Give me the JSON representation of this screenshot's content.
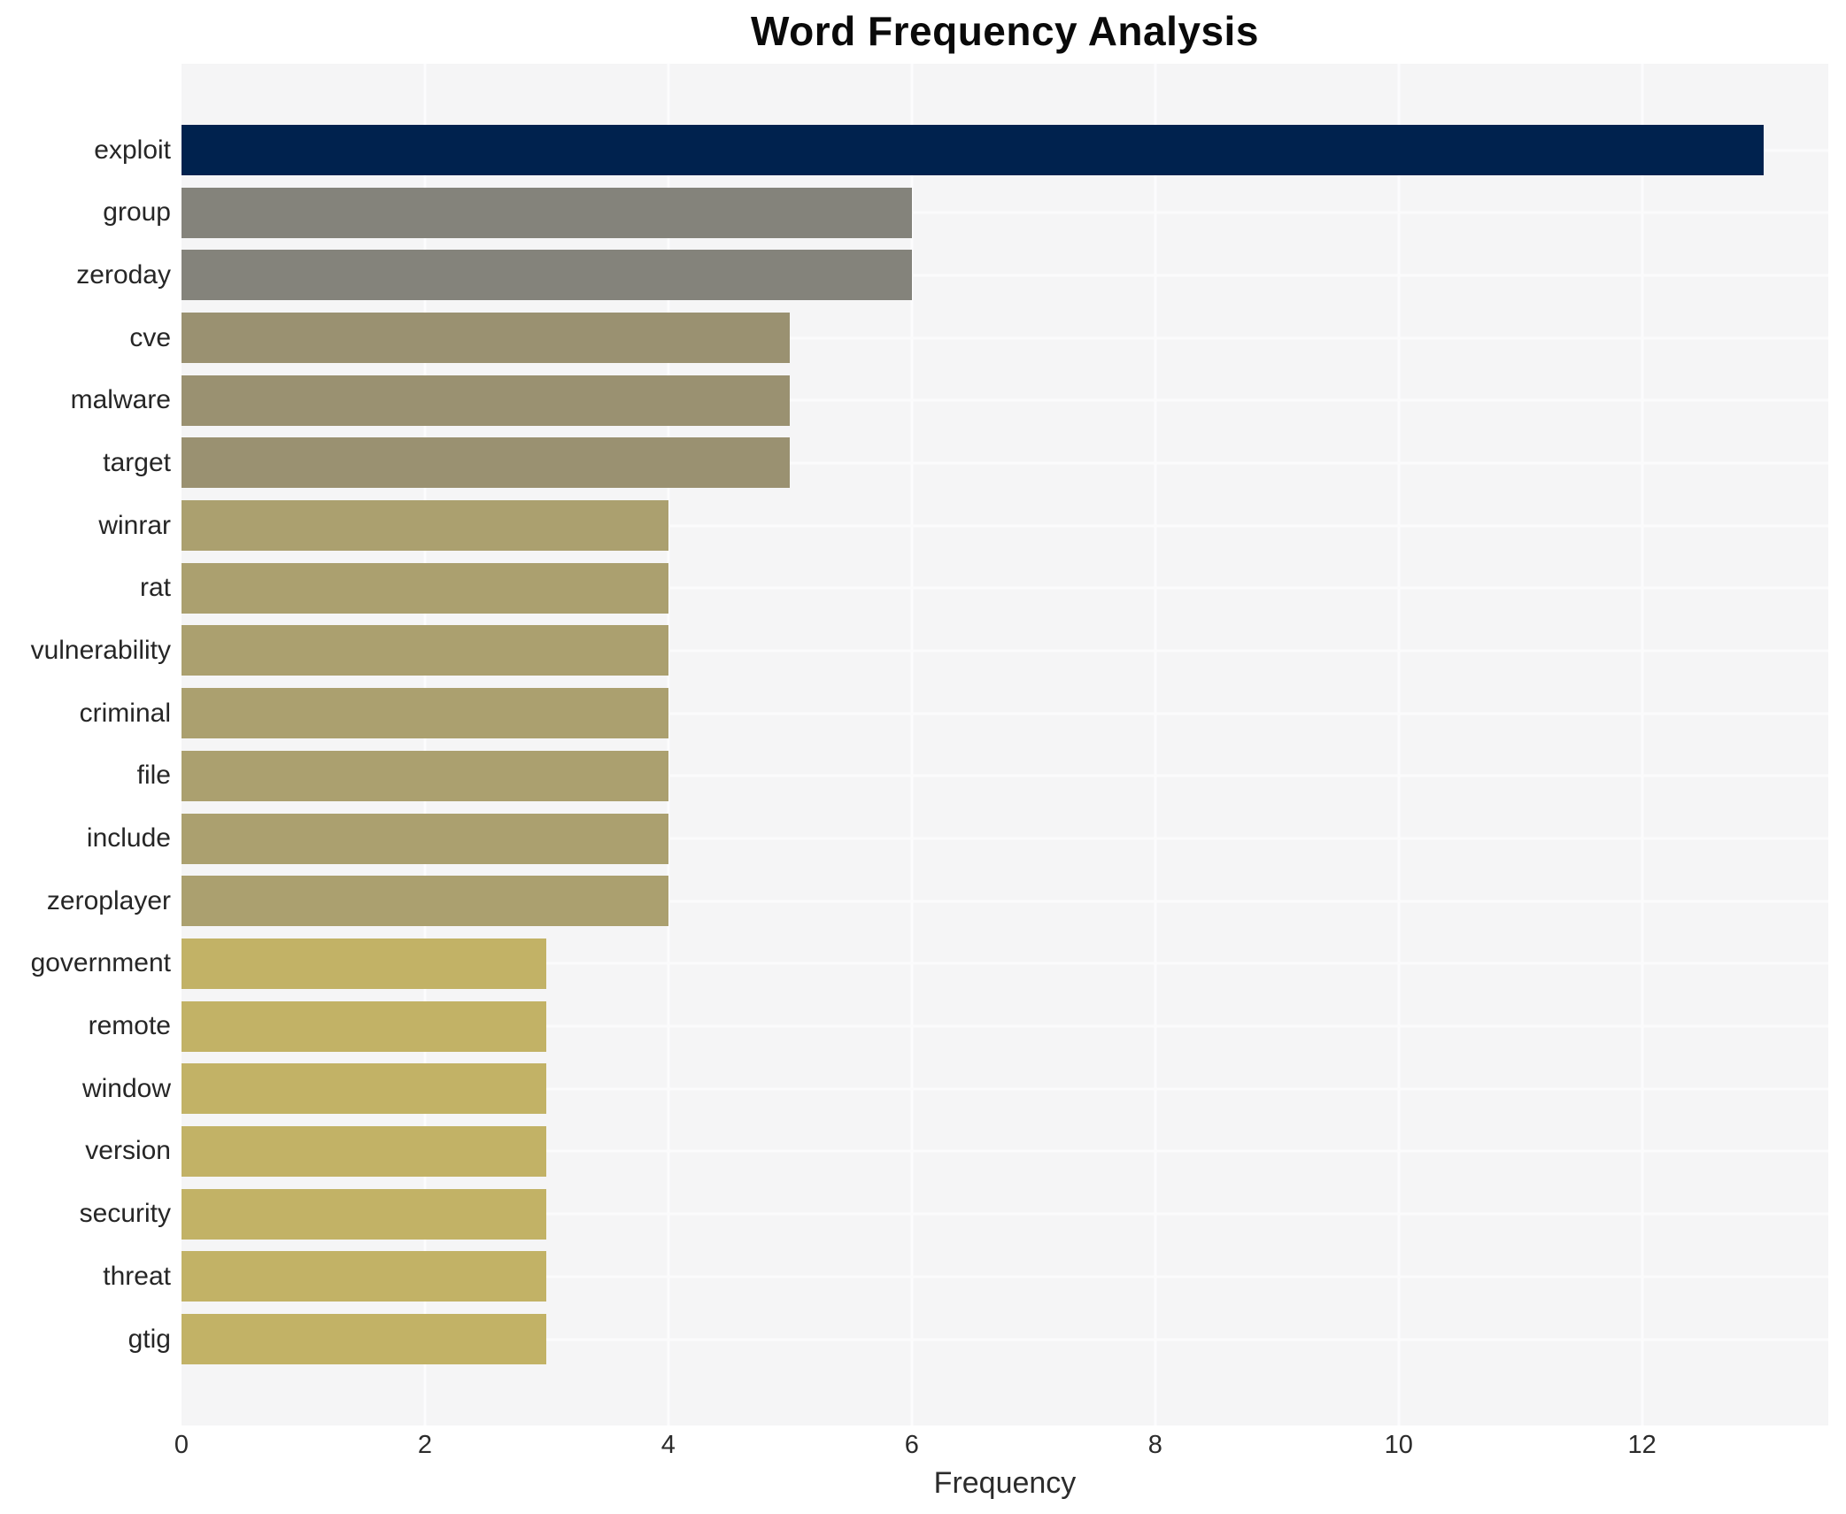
{
  "chart_data": {
    "type": "bar",
    "orientation": "horizontal",
    "title": "Word Frequency Analysis",
    "xlabel": "Frequency",
    "ylabel": "",
    "categories": [
      "exploit",
      "group",
      "zeroday",
      "cve",
      "malware",
      "target",
      "winrar",
      "rat",
      "vulnerability",
      "criminal",
      "file",
      "include",
      "zeroplayer",
      "government",
      "remote",
      "window",
      "version",
      "security",
      "threat",
      "gtig"
    ],
    "values": [
      13,
      6,
      6,
      5,
      5,
      5,
      4,
      4,
      4,
      4,
      4,
      4,
      4,
      3,
      3,
      3,
      3,
      3,
      3,
      3
    ],
    "bar_colors": [
      "#00224e",
      "#84837b",
      "#84837b",
      "#9a9171",
      "#9a9171",
      "#9a9171",
      "#aba06f",
      "#aba06f",
      "#aba06f",
      "#aba06f",
      "#aba06f",
      "#aba06f",
      "#aba06f",
      "#c2b266",
      "#c2b266",
      "#c2b266",
      "#c2b266",
      "#c2b266",
      "#c2b266",
      "#c2b266"
    ],
    "xticks": [
      0,
      2,
      4,
      6,
      8,
      10,
      12
    ],
    "xlim": [
      0,
      13.53
    ],
    "grid": true,
    "legend": false,
    "plot_bg": "#f5f5f6",
    "gridline_color": "#ffffff",
    "text_color": "#262626"
  }
}
